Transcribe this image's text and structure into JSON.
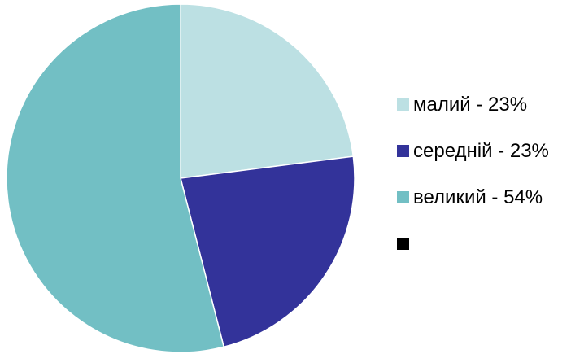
{
  "chart_data": {
    "type": "pie",
    "slices": [
      {
        "label": "малий - 23%",
        "value": 23,
        "color": "#bce0e3"
      },
      {
        "label": "середній - 23%",
        "value": 23,
        "color": "#33339a"
      },
      {
        "label": "великий - 54%",
        "value": 54,
        "color": "#72bfc4"
      },
      {
        "label": "",
        "value": 0,
        "color": "#000000"
      }
    ],
    "legend_position": "right",
    "start_angle": "12 o'clock",
    "direction": "clockwise"
  }
}
